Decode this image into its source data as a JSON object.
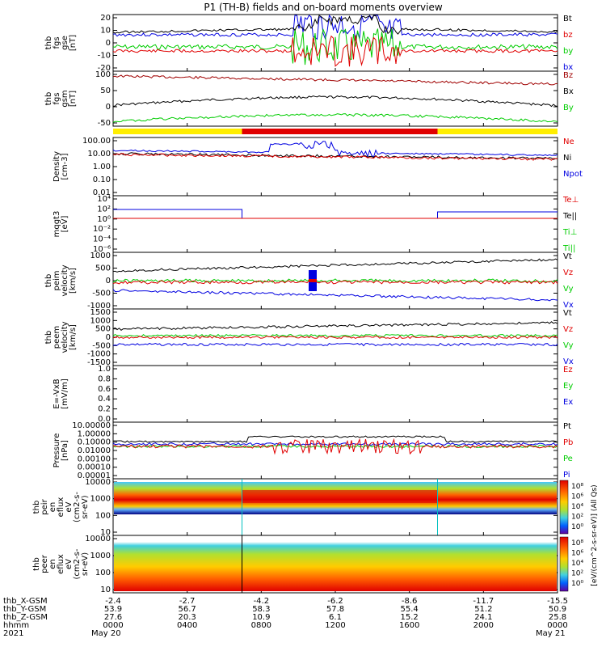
{
  "title": "P1 (TH-B) fields and on-board moments overview",
  "colors": {
    "black": "#000000",
    "red": "#e00000",
    "green": "#00cc00",
    "blue": "#0000e0",
    "darkred": "#a00000",
    "bar_yellow": "#ffee00",
    "bar_red": "#e00000",
    "cyan": "#00c0c0"
  },
  "panels": [
    {
      "ylabel": [
        "thb",
        "fgs",
        "gse",
        "[nT]"
      ],
      "ticks": [
        {
          "v": "20"
        },
        {
          "v": "10"
        },
        {
          "v": "0"
        },
        {
          "v": "-10"
        },
        {
          "v": "-20"
        }
      ],
      "legend": [
        {
          "t": "Bt",
          "c": "black"
        },
        {
          "t": "bz",
          "c": "red"
        },
        {
          "t": "by",
          "c": "green"
        },
        {
          "t": "bx",
          "c": "blue"
        }
      ]
    },
    {
      "ylabel": [
        "thb",
        "fgs",
        "gsm",
        "[nT]"
      ],
      "ticks": [
        {
          "v": "100"
        },
        {
          "v": "50"
        },
        {
          "v": "0"
        },
        {
          "v": "-50"
        }
      ],
      "legend": [
        {
          "t": "Bz",
          "c": "darkred"
        },
        {
          "t": "Bx",
          "c": "black"
        },
        {
          "t": "By",
          "c": "green"
        }
      ]
    },
    {
      "ylabel": [
        "Density",
        "[cm-3]"
      ],
      "ticks": [
        {
          "v": "100.00"
        },
        {
          "v": "10.00"
        },
        {
          "v": "1.00"
        },
        {
          "v": "0.10"
        },
        {
          "v": "0.01"
        }
      ],
      "legend": [
        {
          "t": "Ne",
          "c": "red"
        },
        {
          "t": "Ni",
          "c": "black"
        },
        {
          "t": "Npot",
          "c": "blue"
        }
      ]
    },
    {
      "ylabel": [
        "mqgt3",
        "[eV]"
      ],
      "ticks": [
        {
          "v": "10⁴"
        },
        {
          "v": "10²"
        },
        {
          "v": "10⁰"
        },
        {
          "v": "10⁻²"
        },
        {
          "v": "10⁻⁴"
        },
        {
          "v": "10⁻⁶"
        }
      ],
      "legend": [
        {
          "t": "Te⊥",
          "c": "red"
        },
        {
          "t": "Te||",
          "c": "black"
        },
        {
          "t": "Ti⊥",
          "c": "green"
        },
        {
          "t": "Ti||",
          "c": "green"
        }
      ]
    },
    {
      "ylabel": [
        "thb",
        "peim",
        "velocity",
        "[km/s]"
      ],
      "ticks": [
        {
          "v": "1000"
        },
        {
          "v": "500"
        },
        {
          "v": "0"
        },
        {
          "v": "-500"
        },
        {
          "v": "-1000"
        }
      ],
      "legend": [
        {
          "t": "Vt",
          "c": "black"
        },
        {
          "t": "Vz",
          "c": "red"
        },
        {
          "t": "Vy",
          "c": "green"
        },
        {
          "t": "Vx",
          "c": "blue"
        }
      ]
    },
    {
      "ylabel": [
        "thb",
        "peem",
        "velocity",
        "[km/s]"
      ],
      "ticks": [
        {
          "v": "1500"
        },
        {
          "v": "1000"
        },
        {
          "v": "500"
        },
        {
          "v": "0"
        },
        {
          "v": "-500"
        },
        {
          "v": "-1000"
        },
        {
          "v": "-1500"
        }
      ],
      "legend": [
        {
          "t": "Vt",
          "c": "black"
        },
        {
          "t": "Vz",
          "c": "red"
        },
        {
          "t": "Vy",
          "c": "green"
        },
        {
          "t": "Vx",
          "c": "blue"
        }
      ]
    },
    {
      "ylabel": [
        "E=-VxB",
        "[mV/m]"
      ],
      "ticks": [
        {
          "v": "1.0"
        },
        {
          "v": "0.8"
        },
        {
          "v": "0.6"
        },
        {
          "v": "0.4"
        },
        {
          "v": "0.2"
        },
        {
          "v": "0.0"
        }
      ],
      "legend": [
        {
          "t": "Ez",
          "c": "red"
        },
        {
          "t": "Ey",
          "c": "green"
        },
        {
          "t": "Ex",
          "c": "blue"
        }
      ]
    },
    {
      "ylabel": [
        "Pressure",
        "[nPa]"
      ],
      "ticks": [
        {
          "v": "10.00000"
        },
        {
          "v": "1.00000"
        },
        {
          "v": "0.10000"
        },
        {
          "v": "0.01000"
        },
        {
          "v": "0.00100"
        },
        {
          "v": "0.00010"
        },
        {
          "v": "0.00001"
        }
      ],
      "legend": [
        {
          "t": "Pt",
          "c": "black"
        },
        {
          "t": "Pb",
          "c": "red"
        },
        {
          "t": "Pe",
          "c": "green"
        },
        {
          "t": "Pi",
          "c": "blue"
        }
      ]
    },
    {
      "ylabel": [
        "thb",
        "peir",
        "en",
        "eflux",
        "eV",
        "(cm2-s-",
        "sr-eV)"
      ],
      "ticks": [
        {
          "v": "10000"
        },
        {
          "v": "1000"
        },
        {
          "v": "100"
        },
        {
          "v": "10"
        }
      ],
      "legend": []
    },
    {
      "ylabel": [
        "thb",
        "peer",
        "en",
        "eflux",
        "eV",
        "(cm2-s-",
        "sr-eV)"
      ],
      "ticks": [
        {
          "v": "10000"
        },
        {
          "v": "1000"
        },
        {
          "v": "100"
        },
        {
          "v": "10"
        }
      ],
      "legend": []
    }
  ],
  "colorbar": {
    "labels": [
      "10⁸",
      "10⁶",
      "10⁴",
      "10²",
      "10⁰"
    ],
    "title": "[eV/(cm^2-s-sr-eV)] (All Qs)"
  },
  "xaxis": {
    "rows": [
      {
        "label": "thb_X-GSM",
        "values": [
          "-2.4",
          "-2.7",
          "-4.2",
          "-6.2",
          "-8.6",
          "-11.7",
          "-15.5"
        ]
      },
      {
        "label": "thb_Y-GSM",
        "values": [
          "53.9",
          "56.7",
          "58.3",
          "57.8",
          "55.4",
          "51.2",
          "50.9"
        ]
      },
      {
        "label": "thb_Z-GSM",
        "values": [
          "27.6",
          "20.3",
          "10.9",
          "6.1",
          "15.2",
          "24.1",
          "25.8"
        ]
      },
      {
        "label": "hhmm",
        "values": [
          "0000",
          "0400",
          "0800",
          "1200",
          "1600",
          "2000",
          "0000"
        ]
      }
    ],
    "year": "2021",
    "date_start": "May 20",
    "date_end": "May 21"
  },
  "chart_data": {
    "type": "line",
    "title": "P1 (TH-B) fields and on-board moments overview",
    "x_time_ticks": [
      "0000",
      "0400",
      "0800",
      "1200",
      "1600",
      "2000",
      "0000"
    ],
    "series_summary": [
      {
        "name": "Bt",
        "panel": "fgs gse",
        "approx_range": [
          5,
          20
        ]
      },
      {
        "name": "Bz",
        "panel": "fgs gsm",
        "approx_range": [
          70,
          100
        ]
      },
      {
        "name": "Bx",
        "panel": "fgs gsm",
        "approx_range": [
          -30,
          5
        ]
      },
      {
        "name": "By",
        "panel": "fgs gsm",
        "approx_range": [
          -80,
          -40
        ]
      },
      {
        "name": "Ne",
        "panel": "Density",
        "approx_range": [
          3,
          50
        ]
      },
      {
        "name": "Vx",
        "panel": "peim velocity",
        "approx_range": [
          -500,
          -150
        ]
      },
      {
        "name": "Vt",
        "panel": "peim velocity",
        "approx_range": [
          250,
          600
        ]
      }
    ]
  }
}
